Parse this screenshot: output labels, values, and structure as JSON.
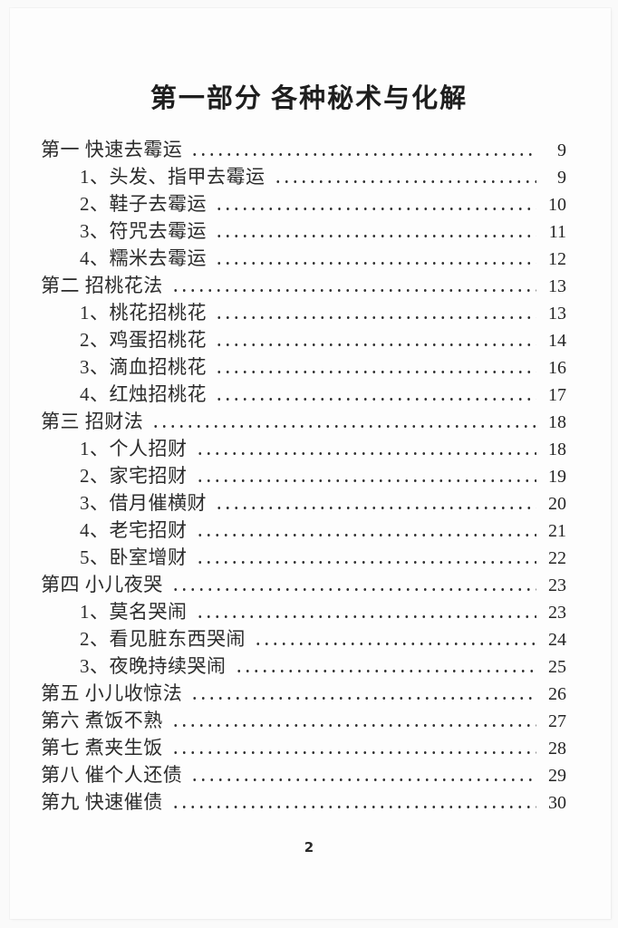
{
  "page": {
    "section_title": "第一部分 各种秘术与化解",
    "folio": "2"
  },
  "toc": {
    "entries": [
      {
        "level": 1,
        "label": "第一 快速去霉运",
        "page": "9"
      },
      {
        "level": 2,
        "label": "1、头发、指甲去霉运",
        "page": "9"
      },
      {
        "level": 2,
        "label": "2、鞋子去霉运",
        "page": "10"
      },
      {
        "level": 2,
        "label": "3、符咒去霉运",
        "page": "11"
      },
      {
        "level": 2,
        "label": "4、糯米去霉运",
        "page": "12"
      },
      {
        "level": 1,
        "label": "第二 招桃花法",
        "page": "13"
      },
      {
        "level": 2,
        "label": "1、桃花招桃花",
        "page": "13"
      },
      {
        "level": 2,
        "label": "2、鸡蛋招桃花",
        "page": "14"
      },
      {
        "level": 2,
        "label": "3、滴血招桃花",
        "page": "16"
      },
      {
        "level": 2,
        "label": "4、红烛招桃花",
        "page": "17"
      },
      {
        "level": 1,
        "label": "第三 招财法",
        "page": "18"
      },
      {
        "level": 2,
        "label": "1、个人招财",
        "page": "18"
      },
      {
        "level": 2,
        "label": "2、家宅招财",
        "page": "19"
      },
      {
        "level": 2,
        "label": "3、借月催横财",
        "page": "20"
      },
      {
        "level": 2,
        "label": "4、老宅招财",
        "page": "21"
      },
      {
        "level": 2,
        "label": "5、卧室增财",
        "page": "22"
      },
      {
        "level": 1,
        "label": "第四 小儿夜哭",
        "page": "23"
      },
      {
        "level": 2,
        "label": "1、莫名哭闹",
        "page": "23"
      },
      {
        "level": 2,
        "label": "2、看见脏东西哭闹",
        "page": "24"
      },
      {
        "level": 2,
        "label": "3、夜晚持续哭闹",
        "page": "25"
      },
      {
        "level": 1,
        "label": "第五 小儿收惊法",
        "page": "26"
      },
      {
        "level": 1,
        "label": "第六 煮饭不熟",
        "page": "27"
      },
      {
        "level": 1,
        "label": "第七 煮夹生饭",
        "page": "28"
      },
      {
        "level": 1,
        "label": "第八 催个人还债",
        "page": "29"
      },
      {
        "level": 1,
        "label": "第九 快速催债",
        "page": "30"
      }
    ]
  }
}
